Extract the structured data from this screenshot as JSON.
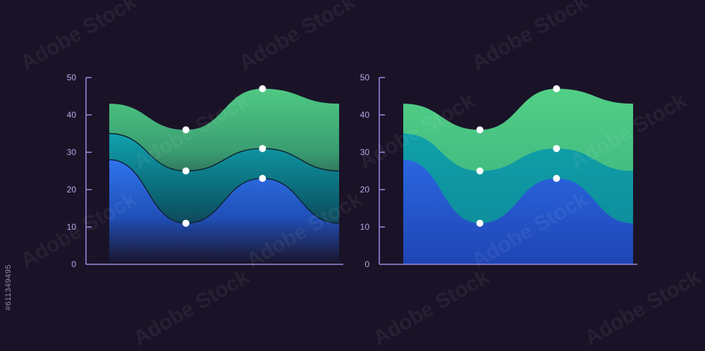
{
  "stock_id": "#611349495",
  "watermark_text": "Adobe Stock",
  "colors": {
    "background": "#1a1328",
    "axis": "#9d8ae0",
    "tick_text": "#b9a8e6",
    "top_layer": "#4fc983",
    "middle_layer": "#0f9aa6",
    "bottom_layer": "#2b68de",
    "marker": "#ffffff"
  },
  "chart_data": [
    {
      "type": "area",
      "style": "stacked, gradient fade, outlined",
      "title": "",
      "xlabel": "",
      "ylabel": "",
      "ylim": [
        0,
        50
      ],
      "yticks": [
        0,
        10,
        20,
        30,
        40,
        50
      ],
      "grid": false,
      "legend": "none",
      "x": [
        0,
        1,
        2,
        3
      ],
      "series": [
        {
          "values": [
            43,
            36,
            47,
            43
          ]
        },
        {
          "values": [
            35,
            25,
            31,
            25
          ]
        },
        {
          "values": [
            28,
            11,
            23,
            11
          ]
        }
      ],
      "markers": [
        {
          "series": 0,
          "x": 1,
          "y": 36
        },
        {
          "series": 0,
          "x": 2,
          "y": 47
        },
        {
          "series": 1,
          "x": 1,
          "y": 25
        },
        {
          "series": 1,
          "x": 2,
          "y": 31
        },
        {
          "series": 2,
          "x": 1,
          "y": 11
        },
        {
          "series": 2,
          "x": 2,
          "y": 23
        }
      ]
    },
    {
      "type": "area",
      "style": "stacked, flat fill",
      "title": "",
      "xlabel": "",
      "ylabel": "",
      "ylim": [
        0,
        50
      ],
      "yticks": [
        0,
        10,
        20,
        30,
        40,
        50
      ],
      "grid": false,
      "legend": "none",
      "x": [
        0,
        1,
        2,
        3
      ],
      "series": [
        {
          "values": [
            43,
            36,
            47,
            43
          ]
        },
        {
          "values": [
            35,
            25,
            31,
            25
          ]
        },
        {
          "values": [
            28,
            11,
            23,
            11
          ]
        }
      ],
      "markers": [
        {
          "series": 0,
          "x": 1,
          "y": 36
        },
        {
          "series": 0,
          "x": 2,
          "y": 47
        },
        {
          "series": 1,
          "x": 1,
          "y": 25
        },
        {
          "series": 1,
          "x": 2,
          "y": 31
        },
        {
          "series": 2,
          "x": 1,
          "y": 11
        },
        {
          "series": 2,
          "x": 2,
          "y": 23
        }
      ]
    }
  ]
}
